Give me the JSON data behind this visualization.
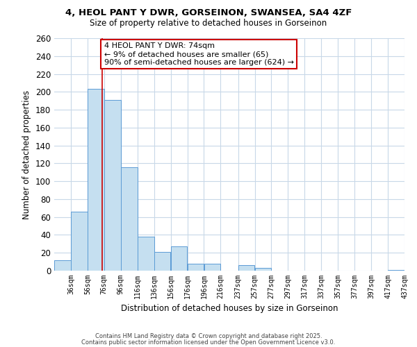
{
  "title": "4, HEOL PANT Y DWR, GORSEINON, SWANSEA, SA4 4ZF",
  "subtitle": "Size of property relative to detached houses in Gorseinon",
  "xlabel": "Distribution of detached houses by size in Gorseinon",
  "ylabel": "Number of detached properties",
  "bar_color": "#c5dff0",
  "bar_edge_color": "#5b9bd5",
  "categories": [
    "36sqm",
    "56sqm",
    "76sqm",
    "96sqm",
    "116sqm",
    "136sqm",
    "156sqm",
    "176sqm",
    "196sqm",
    "216sqm",
    "237sqm",
    "257sqm",
    "277sqm",
    "297sqm",
    "317sqm",
    "337sqm",
    "357sqm",
    "377sqm",
    "397sqm",
    "417sqm",
    "437sqm"
  ],
  "values": [
    12,
    66,
    203,
    191,
    116,
    38,
    21,
    27,
    8,
    8,
    0,
    6,
    3,
    0,
    0,
    0,
    0,
    0,
    0,
    0,
    1
  ],
  "ylim": [
    0,
    260
  ],
  "yticks": [
    0,
    20,
    40,
    60,
    80,
    100,
    120,
    140,
    160,
    180,
    200,
    220,
    240,
    260
  ],
  "property_line_x": 74,
  "bin_edges": [
    16,
    36,
    56,
    76,
    96,
    116,
    136,
    156,
    176,
    196,
    216,
    237,
    257,
    277,
    297,
    317,
    337,
    357,
    377,
    397,
    417,
    437
  ],
  "annotation_line1": "4 HEOL PANT Y DWR: 74sqm",
  "annotation_line2": "← 9% of detached houses are smaller (65)",
  "annotation_line3": "90% of semi-detached houses are larger (624) →",
  "annotation_box_color": "#ffffff",
  "annotation_box_edge_color": "#cc0000",
  "vline_color": "#cc0000",
  "footer1": "Contains HM Land Registry data © Crown copyright and database right 2025.",
  "footer2": "Contains public sector information licensed under the Open Government Licence v3.0.",
  "background_color": "#ffffff",
  "grid_color": "#c8d8e8"
}
